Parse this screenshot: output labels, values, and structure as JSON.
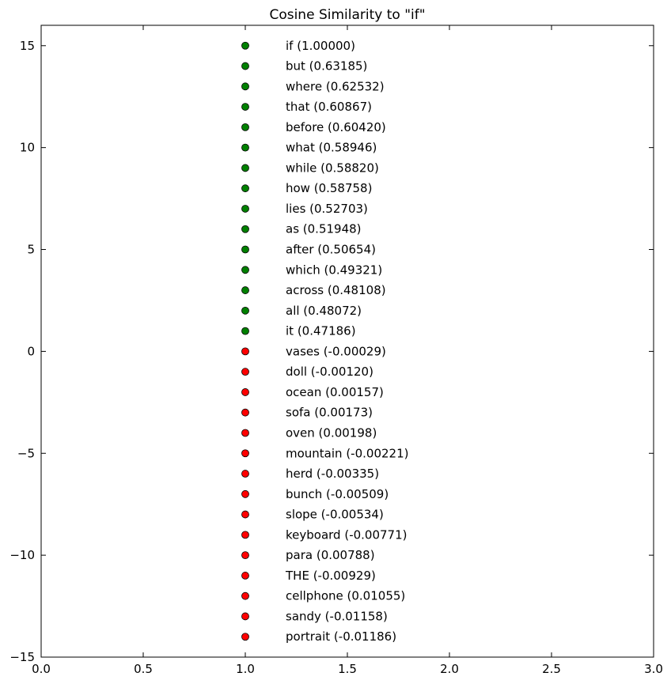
{
  "chart_data": {
    "type": "scatter",
    "title": "Cosine Similarity to \"if\"",
    "xlabel": "",
    "ylabel": "",
    "xlim": [
      0,
      3
    ],
    "ylim": [
      -15,
      16
    ],
    "grid": false,
    "x_ticks": [
      0.0,
      0.5,
      1.0,
      1.5,
      2.0,
      2.5,
      3.0
    ],
    "x_tick_labels": [
      "0.0",
      "0.5",
      "1.0",
      "1.5",
      "2.0",
      "2.5",
      "3.0"
    ],
    "y_ticks": [
      15,
      10,
      5,
      0,
      -5,
      -10,
      -15
    ],
    "y_tick_labels": [
      "15",
      "10",
      "5",
      "0",
      "−5",
      "−10",
      "−15"
    ],
    "colors": {
      "similar": "#008000",
      "dissimilar": "#ff0000"
    },
    "points": [
      {
        "x": 1,
        "y": 15,
        "label": "if (1.00000)",
        "group": "similar"
      },
      {
        "x": 1,
        "y": 14,
        "label": "but (0.63185)",
        "group": "similar"
      },
      {
        "x": 1,
        "y": 13,
        "label": "where (0.62532)",
        "group": "similar"
      },
      {
        "x": 1,
        "y": 12,
        "label": "that (0.60867)",
        "group": "similar"
      },
      {
        "x": 1,
        "y": 11,
        "label": "before (0.60420)",
        "group": "similar"
      },
      {
        "x": 1,
        "y": 10,
        "label": "what (0.58946)",
        "group": "similar"
      },
      {
        "x": 1,
        "y": 9,
        "label": "while (0.58820)",
        "group": "similar"
      },
      {
        "x": 1,
        "y": 8,
        "label": "how (0.58758)",
        "group": "similar"
      },
      {
        "x": 1,
        "y": 7,
        "label": "lies (0.52703)",
        "group": "similar"
      },
      {
        "x": 1,
        "y": 6,
        "label": "as (0.51948)",
        "group": "similar"
      },
      {
        "x": 1,
        "y": 5,
        "label": "after (0.50654)",
        "group": "similar"
      },
      {
        "x": 1,
        "y": 4,
        "label": "which (0.49321)",
        "group": "similar"
      },
      {
        "x": 1,
        "y": 3,
        "label": "across (0.48108)",
        "group": "similar"
      },
      {
        "x": 1,
        "y": 2,
        "label": "all (0.48072)",
        "group": "similar"
      },
      {
        "x": 1,
        "y": 1,
        "label": "it (0.47186)",
        "group": "similar"
      },
      {
        "x": 1,
        "y": 0,
        "label": "vases (-0.00029)",
        "group": "dissimilar"
      },
      {
        "x": 1,
        "y": -1,
        "label": "doll (-0.00120)",
        "group": "dissimilar"
      },
      {
        "x": 1,
        "y": -2,
        "label": "ocean (0.00157)",
        "group": "dissimilar"
      },
      {
        "x": 1,
        "y": -3,
        "label": "sofa (0.00173)",
        "group": "dissimilar"
      },
      {
        "x": 1,
        "y": -4,
        "label": "oven (0.00198)",
        "group": "dissimilar"
      },
      {
        "x": 1,
        "y": -5,
        "label": "mountain (-0.00221)",
        "group": "dissimilar"
      },
      {
        "x": 1,
        "y": -6,
        "label": "herd (-0.00335)",
        "group": "dissimilar"
      },
      {
        "x": 1,
        "y": -7,
        "label": "bunch (-0.00509)",
        "group": "dissimilar"
      },
      {
        "x": 1,
        "y": -8,
        "label": "slope (-0.00534)",
        "group": "dissimilar"
      },
      {
        "x": 1,
        "y": -9,
        "label": "keyboard (-0.00771)",
        "group": "dissimilar"
      },
      {
        "x": 1,
        "y": -10,
        "label": "para (0.00788)",
        "group": "dissimilar"
      },
      {
        "x": 1,
        "y": -11,
        "label": "THE (-0.00929)",
        "group": "dissimilar"
      },
      {
        "x": 1,
        "y": -12,
        "label": "cellphone (0.01055)",
        "group": "dissimilar"
      },
      {
        "x": 1,
        "y": -13,
        "label": "sandy (-0.01158)",
        "group": "dissimilar"
      },
      {
        "x": 1,
        "y": -14,
        "label": "portrait (-0.01186)",
        "group": "dissimilar"
      }
    ]
  }
}
